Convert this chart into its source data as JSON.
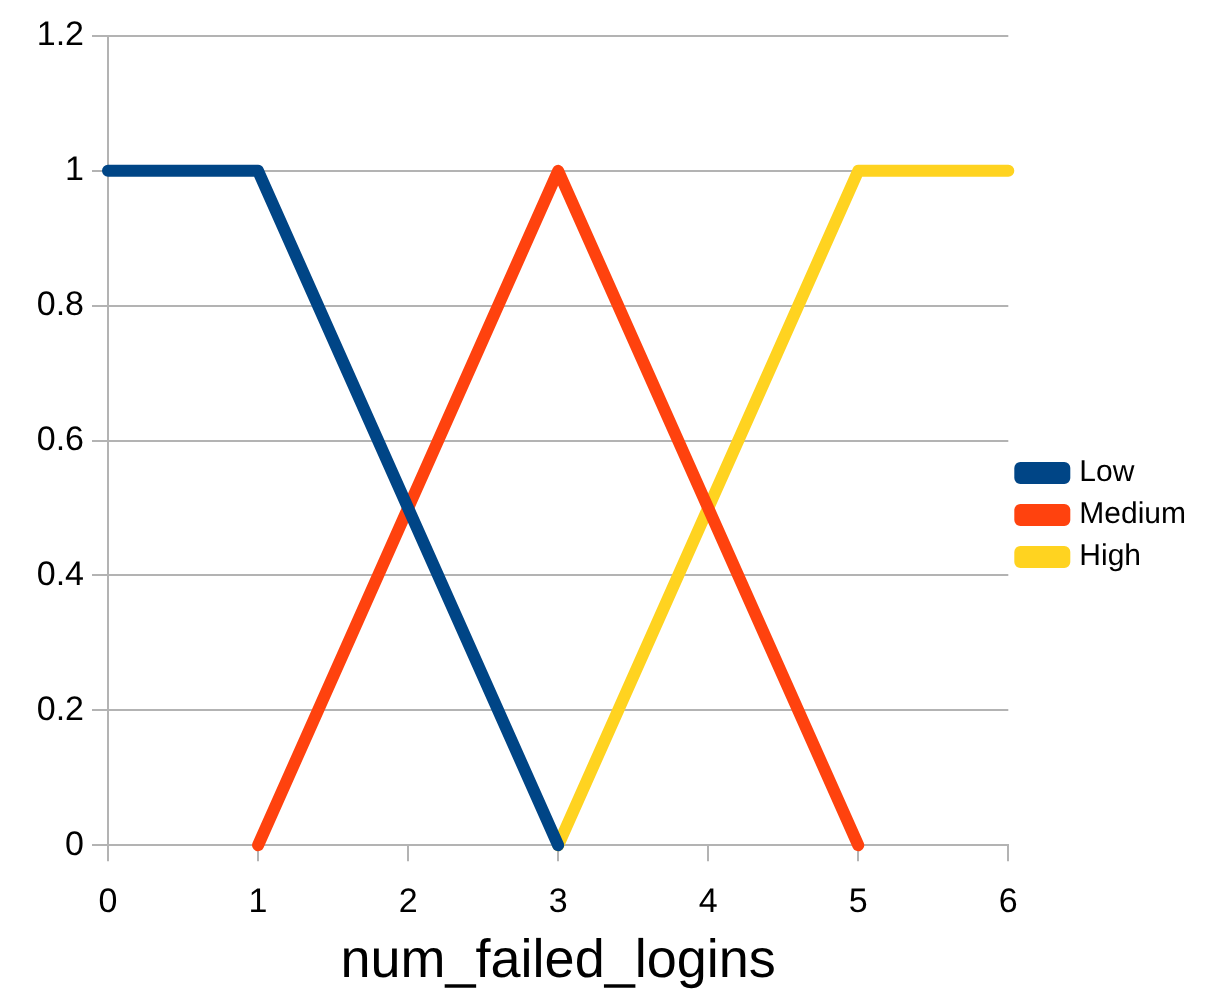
{
  "chart_data": {
    "type": "line",
    "xlabel": "num_failed_logins",
    "xlim": [
      0,
      6
    ],
    "xticks": [
      0,
      1,
      2,
      3,
      4,
      5,
      6
    ],
    "ylim": [
      0,
      1.2
    ],
    "yticks": [
      0,
      0.2,
      0.4,
      0.6,
      0.8,
      1,
      1.2
    ],
    "grid": "y",
    "legend": "right",
    "marker": "none",
    "line_style": "solid",
    "series": [
      {
        "name": "Low",
        "color": "#004586",
        "x": [
          0,
          1,
          3
        ],
        "values": [
          1,
          1,
          0
        ]
      },
      {
        "name": "Medium",
        "color": "#ff420e",
        "x": [
          1,
          3,
          5
        ],
        "values": [
          0,
          1,
          0
        ]
      },
      {
        "name": "High",
        "color": "#ffd320",
        "x": [
          3,
          5,
          6
        ],
        "values": [
          0,
          1,
          1
        ]
      }
    ]
  }
}
